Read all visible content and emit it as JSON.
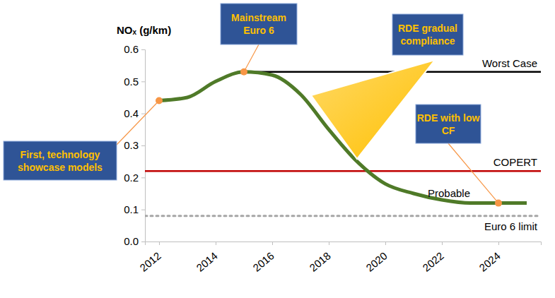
{
  "chart_data": {
    "type": "line",
    "y_label": "NOₓ (g/km)",
    "x": [
      2012,
      2013,
      2014,
      2015,
      2016,
      2017,
      2018,
      2019,
      2020,
      2021,
      2022,
      2023,
      2024,
      2025
    ],
    "series": [
      {
        "name": "Probable",
        "color": "#4f7a28",
        "values": [
          0.44,
          0.45,
          0.5,
          0.53,
          0.52,
          0.46,
          0.35,
          0.25,
          0.18,
          0.15,
          0.13,
          0.12,
          0.12,
          0.12
        ]
      }
    ],
    "xlim": [
      2011.5,
      2025.5
    ],
    "xticks": [
      2012,
      2014,
      2016,
      2018,
      2020,
      2022,
      2024
    ],
    "ylim": [
      0,
      0.6
    ],
    "yticks": [
      {
        "value": 0,
        "label": "0.0"
      },
      0.1,
      0.2,
      0.3,
      0.4,
      0.5,
      0.6
    ],
    "reference_lines": [
      {
        "name": "Worst Case",
        "value": 0.53,
        "x_from": 2015,
        "color": "#000000",
        "line_style": "solid"
      },
      {
        "name": "COPERT",
        "value": 0.22,
        "color": "#c00000",
        "line_style": "solid"
      },
      {
        "name": "Euro 6 limit",
        "value": 0.08,
        "color": "#a6a6a6",
        "line_style": "dotted"
      }
    ],
    "annotations": [
      {
        "lines": [
          "First, technology",
          "showcase models"
        ],
        "x": 2012,
        "y": 0.44
      },
      {
        "lines": [
          "Mainstream",
          "Euro 6"
        ],
        "x": 2015,
        "y": 0.53
      },
      {
        "lines": [
          "RDE gradual",
          "compliance"
        ]
      },
      {
        "lines": [
          "RDE with low",
          "CF"
        ],
        "x": 2024,
        "y": 0.12
      }
    ]
  }
}
